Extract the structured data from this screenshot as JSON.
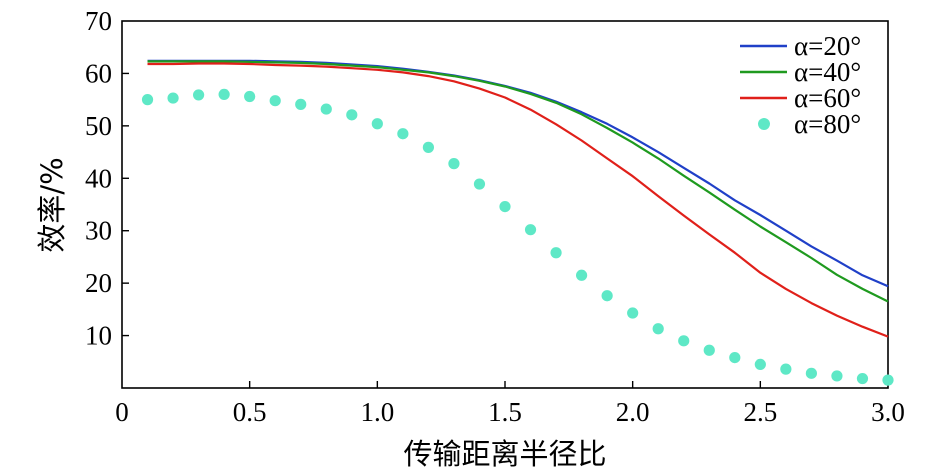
{
  "chart_data": {
    "type": "line",
    "xlabel": "传输距离半径比",
    "ylabel": "效率/%",
    "xlim": [
      0,
      3.0
    ],
    "ylim": [
      0,
      70
    ],
    "x_ticks": [
      "0",
      "0.5",
      "1.0",
      "1.5",
      "2.0",
      "2.5",
      "3.0"
    ],
    "x_tick_values": [
      0,
      0.5,
      1.0,
      1.5,
      2.0,
      2.5,
      3.0
    ],
    "y_ticks": [
      "10",
      "20",
      "30",
      "40",
      "50",
      "60",
      "70"
    ],
    "y_tick_values": [
      10,
      20,
      30,
      40,
      50,
      60,
      70
    ],
    "grid": false,
    "legend_position": "top-right",
    "series": [
      {
        "name": "α=20°",
        "style": "line",
        "color": "#2040c8",
        "x": [
          0.1,
          0.2,
          0.3,
          0.4,
          0.5,
          0.6,
          0.7,
          0.8,
          0.9,
          1.0,
          1.1,
          1.2,
          1.3,
          1.4,
          1.5,
          1.6,
          1.7,
          1.8,
          1.9,
          2.0,
          2.1,
          2.2,
          2.3,
          2.4,
          2.5,
          2.6,
          2.7,
          2.8,
          2.9,
          3.0
        ],
        "y": [
          62.4,
          62.4,
          62.4,
          62.4,
          62.4,
          62.3,
          62.2,
          62.0,
          61.7,
          61.4,
          60.9,
          60.3,
          59.6,
          58.7,
          57.6,
          56.3,
          54.6,
          52.6,
          50.4,
          47.8,
          45.0,
          42.0,
          39.0,
          35.8,
          33.0,
          30.0,
          27.0,
          24.3,
          21.5,
          19.4
        ]
      },
      {
        "name": "α=40°",
        "style": "line",
        "color": "#1f9a1f",
        "x": [
          0.1,
          0.2,
          0.3,
          0.4,
          0.5,
          0.6,
          0.7,
          0.8,
          0.9,
          1.0,
          1.1,
          1.2,
          1.3,
          1.4,
          1.5,
          1.6,
          1.7,
          1.8,
          1.9,
          2.0,
          2.1,
          2.2,
          2.3,
          2.4,
          2.5,
          2.6,
          2.7,
          2.8,
          2.9,
          3.0
        ],
        "y": [
          62.3,
          62.3,
          62.3,
          62.3,
          62.2,
          62.1,
          62.0,
          61.8,
          61.5,
          61.2,
          60.7,
          60.2,
          59.5,
          58.6,
          57.5,
          56.1,
          54.4,
          52.2,
          49.6,
          46.8,
          43.8,
          40.5,
          37.3,
          34.0,
          30.8,
          27.8,
          24.8,
          21.6,
          18.9,
          16.5
        ]
      },
      {
        "name": "α=60°",
        "style": "line",
        "color": "#e0201a",
        "x": [
          0.1,
          0.2,
          0.3,
          0.4,
          0.5,
          0.6,
          0.7,
          0.8,
          0.9,
          1.0,
          1.1,
          1.2,
          1.3,
          1.4,
          1.5,
          1.6,
          1.7,
          1.8,
          1.9,
          2.0,
          2.1,
          2.2,
          2.3,
          2.4,
          2.5,
          2.6,
          2.7,
          2.8,
          2.9,
          3.0
        ],
        "y": [
          61.8,
          61.8,
          61.9,
          61.9,
          61.8,
          61.6,
          61.5,
          61.3,
          61.0,
          60.7,
          60.2,
          59.5,
          58.5,
          57.1,
          55.4,
          53.1,
          50.3,
          47.2,
          43.8,
          40.4,
          36.6,
          32.9,
          29.3,
          25.8,
          22.0,
          18.9,
          16.2,
          13.8,
          11.7,
          9.8
        ]
      },
      {
        "name": "α=80°",
        "style": "scatter",
        "color": "#5ee8c6",
        "x": [
          0.1,
          0.2,
          0.3,
          0.4,
          0.5,
          0.6,
          0.7,
          0.8,
          0.9,
          1.0,
          1.1,
          1.2,
          1.3,
          1.4,
          1.5,
          1.6,
          1.7,
          1.8,
          1.9,
          2.0,
          2.1,
          2.2,
          2.3,
          2.4,
          2.5,
          2.6,
          2.7,
          2.8,
          2.9,
          3.0
        ],
        "y": [
          55.0,
          55.3,
          55.9,
          56.0,
          55.6,
          54.8,
          54.1,
          53.2,
          52.1,
          50.4,
          48.5,
          45.9,
          42.8,
          38.9,
          34.6,
          30.2,
          25.8,
          21.5,
          17.6,
          14.3,
          11.3,
          9.0,
          7.2,
          5.8,
          4.5,
          3.6,
          2.8,
          2.3,
          1.8,
          1.5
        ]
      }
    ]
  }
}
